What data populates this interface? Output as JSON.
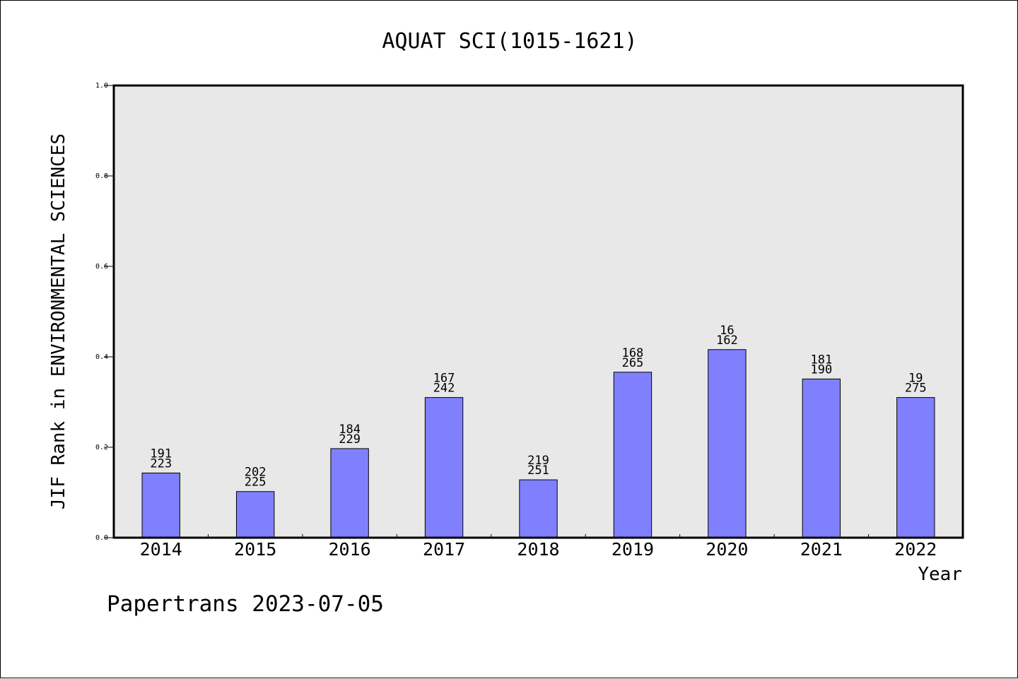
{
  "chart_data": {
    "type": "bar",
    "title": "AQUAT SCI(1015-1621)",
    "xlabel": "Year",
    "ylabel": "JIF Rank in ENVIRONMENTAL SCIENCES",
    "ylim": [
      0,
      1.0
    ],
    "yticks": [
      "0.0",
      "0.2",
      "0.4",
      "0.6",
      "0.8",
      "1.0"
    ],
    "grid": false,
    "categories": [
      "2014",
      "2015",
      "2016",
      "2017",
      "2018",
      "2019",
      "2020",
      "2021",
      "2022"
    ],
    "values": [
      0.143,
      0.102,
      0.197,
      0.31,
      0.128,
      0.366,
      0.416,
      0.351,
      0.31
    ],
    "labels_top": [
      "191",
      "202",
      "184",
      "167",
      "219",
      "168",
      "16",
      "181",
      "19"
    ],
    "labels_bottom": [
      "223",
      "225",
      "229",
      "242",
      "251",
      "265",
      "162",
      "190",
      "275"
    ],
    "bar_color": "#8080ff",
    "plot_bg": "#e8e8e8"
  },
  "footer": "Papertrans 2023-07-05"
}
